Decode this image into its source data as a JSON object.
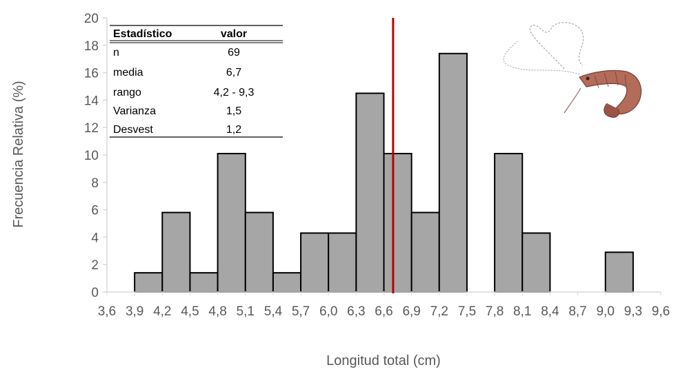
{
  "chart_data": {
    "type": "bar",
    "xlabel": "Longitud total (cm)",
    "ylabel": "Frecuencia Relativa (%)",
    "ylim": [
      0,
      20
    ],
    "y_ticks": [
      "0",
      "2",
      "4",
      "6",
      "8",
      "10",
      "12",
      "14",
      "16",
      "18",
      "20"
    ],
    "x_tick_labels": [
      "3,6",
      "3,9",
      "4,2",
      "4,5",
      "4,8",
      "5,1",
      "5,4",
      "5,7",
      "6,0",
      "6,3",
      "6,6",
      "6,9",
      "7,2",
      "7,5",
      "7,8",
      "8,1",
      "8,4",
      "8,7",
      "9,0",
      "9,3",
      "9,6"
    ],
    "categories": [
      "3,6",
      "3,9",
      "4,2",
      "4,5",
      "4,8",
      "5,1",
      "5,4",
      "5,7",
      "6,0",
      "6,3",
      "6,6",
      "6,9",
      "7,2",
      "7,5",
      "7,8",
      "8,1",
      "8,4",
      "8,7",
      "9,0",
      "9,3"
    ],
    "values": [
      0,
      1.4,
      5.8,
      1.4,
      10.1,
      5.8,
      1.4,
      4.3,
      4.3,
      14.5,
      10.1,
      5.8,
      17.4,
      0,
      10.1,
      4.3,
      0,
      0,
      2.9,
      0
    ],
    "grid": false,
    "bar_color": "#a6a6a6",
    "mean_line": {
      "x": 6.7,
      "color": "#c00000"
    },
    "stats_table": {
      "headers": [
        "Estadístico",
        "valor"
      ],
      "rows": [
        [
          "n",
          "69"
        ],
        [
          "media",
          "6,7"
        ],
        [
          "rango",
          "4,2 - 9,3"
        ],
        [
          "Varianza",
          "1,5"
        ],
        [
          "Desvest",
          "1,2"
        ]
      ]
    }
  }
}
